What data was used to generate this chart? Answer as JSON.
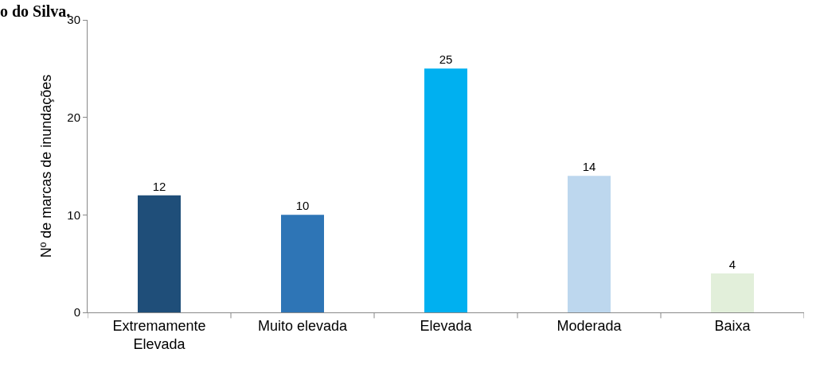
{
  "chart_data": {
    "type": "bar",
    "title": "o do Silva.",
    "ylabel": "Nº de marcas de inundações",
    "categories": [
      "Extremamente Elevada",
      "Muito elevada",
      "Elevada",
      "Moderada",
      "Baixa"
    ],
    "values": [
      12,
      10,
      25,
      14,
      4
    ],
    "colors": [
      "#1f4e79",
      "#2e75b6",
      "#00b0f0",
      "#bdd7ee",
      "#e2efda"
    ],
    "ylim": [
      0,
      30
    ],
    "yticks": [
      0,
      10,
      20,
      30
    ],
    "data_labels": true
  }
}
